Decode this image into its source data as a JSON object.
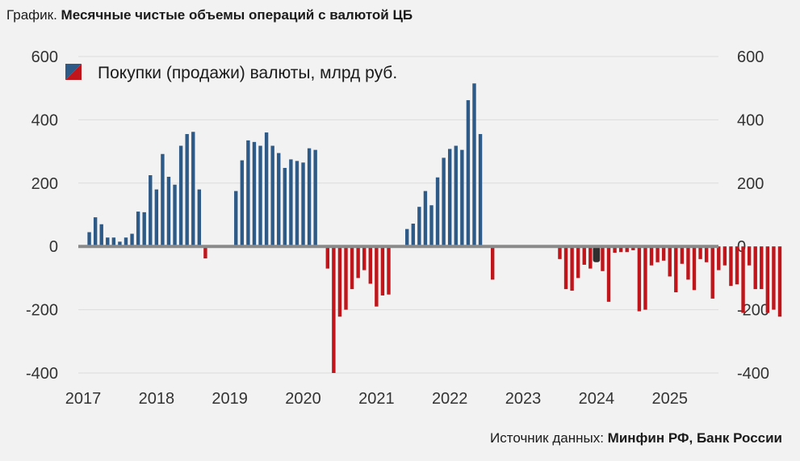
{
  "title": {
    "prefix": "График.",
    "main": "Месячные чистые объемы операций с валютой ЦБ"
  },
  "source": {
    "prefix": "Источник данных:",
    "main": "Минфин РФ, Банк России"
  },
  "colors": {
    "positive": "#2e5a87",
    "negative": "#c0151b",
    "highlight": "#2f2f2f",
    "grid": "#dcdcdc",
    "zero_line": "#8a8a8a",
    "background": "#f2f2f2"
  },
  "chart_data": {
    "type": "bar",
    "title": "Месячные чистые объемы операций с валютой ЦБ",
    "legend": "Покупки (продажи) валюты, млрд руб.",
    "legend_position": "top-left",
    "ylim": [
      -400,
      600
    ],
    "yticks": [
      "600",
      "400",
      "200",
      "0",
      "-200",
      "-400"
    ],
    "ytick_values": [
      600,
      400,
      200,
      0,
      -200,
      -400
    ],
    "xticks": [
      "2017",
      "2018",
      "2019",
      "2020",
      "2021",
      "2022",
      "2023",
      "2024",
      "2025"
    ],
    "start": "2017-01",
    "highlight_month": "2024-01",
    "values": [
      0,
      45,
      92,
      70,
      28,
      28,
      15,
      28,
      40,
      110,
      108,
      225,
      180,
      292,
      220,
      195,
      318,
      355,
      362,
      180,
      -38,
      0,
      0,
      0,
      0,
      175,
      272,
      335,
      330,
      318,
      360,
      318,
      295,
      248,
      275,
      270,
      265,
      310,
      305,
      0,
      -70,
      -400,
      -222,
      -200,
      -135,
      -100,
      -75,
      -118,
      -190,
      -155,
      -152,
      0,
      0,
      55,
      72,
      125,
      175,
      130,
      218,
      280,
      308,
      318,
      305,
      462,
      515,
      355,
      0,
      -105,
      0,
      0,
      0,
      0,
      0,
      0,
      0,
      0,
      0,
      0,
      -40,
      -135,
      -140,
      -100,
      -58,
      -70,
      -50,
      -78,
      -175,
      -20,
      -18,
      -18,
      -12,
      -205,
      -200,
      -60,
      -50,
      -45,
      -95,
      -145,
      -55,
      -105,
      -138,
      -40,
      -50,
      -165,
      -75,
      -60,
      -125,
      -120,
      -210,
      -60,
      -135,
      -135,
      -210,
      -200,
      -222
    ]
  }
}
